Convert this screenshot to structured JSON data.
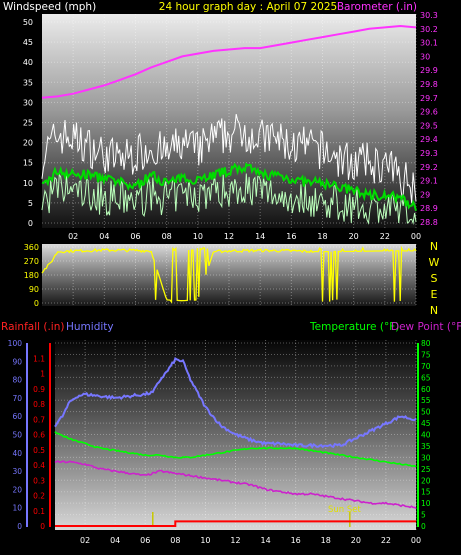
{
  "header": {
    "left_label": "Windspeed (mph)",
    "title": "24 hour graph day : April 07 2025",
    "right_label": "Barometer (.in)"
  },
  "colors": {
    "wind_label": "#ffffff",
    "title": "#ffff00",
    "barometer": "#ff33ff",
    "rain": "#ff0000",
    "humidity": "#7777ff",
    "temperature": "#00ff00",
    "dewpoint": "#cc22cc",
    "gust": "#ffffff",
    "wind_avg": "#00dd00",
    "wind_light": "#bbffbb",
    "direction": "#ffff00",
    "sunset": "#c8c800"
  },
  "chart_data": [
    {
      "id": "wind-baro",
      "type": "line",
      "xlabel": "",
      "x_ticks": [
        "02",
        "04",
        "06",
        "08",
        "10",
        "12",
        "14",
        "16",
        "18",
        "20",
        "22",
        "00"
      ],
      "x_range_hours": [
        0,
        24
      ],
      "left_axis": {
        "label": "Windspeed (mph)",
        "ylim": [
          0,
          50
        ],
        "ticks": [
          "0",
          "5",
          "10",
          "15",
          "20",
          "25",
          "30",
          "35",
          "40",
          "45",
          "50"
        ]
      },
      "right_axis": {
        "label": "Barometer (.in)",
        "ylim": [
          28.8,
          30.3
        ],
        "ticks": [
          "28.8",
          "28.9",
          "29",
          "29.1",
          "29.2",
          "29.3",
          "29.4",
          "29.5",
          "29.6",
          "29.7",
          "29.8",
          "29.9",
          "30",
          "30.1",
          "30.2",
          "30.3"
        ]
      },
      "series": [
        {
          "name": "Barometer (.in)",
          "axis": "right",
          "x": [
            0,
            1,
            2,
            3,
            4,
            5,
            6,
            7,
            8,
            9,
            10,
            11,
            12,
            13,
            14,
            15,
            16,
            17,
            18,
            19,
            20,
            21,
            22,
            23,
            24
          ],
          "y": [
            29.7,
            29.71,
            29.73,
            29.76,
            29.79,
            29.83,
            29.87,
            29.92,
            29.96,
            30.0,
            30.02,
            30.04,
            30.05,
            30.06,
            30.06,
            30.08,
            30.1,
            30.12,
            30.14,
            30.16,
            30.18,
            30.2,
            30.21,
            30.22,
            30.21
          ]
        },
        {
          "name": "Gust (mph)",
          "axis": "left",
          "x": [
            0,
            1,
            2,
            3,
            4,
            5,
            6,
            7,
            8,
            9,
            10,
            11,
            12,
            13,
            14,
            15,
            16,
            17,
            18,
            19,
            20,
            21,
            22,
            23,
            24
          ],
          "y": [
            14,
            20,
            19,
            17,
            15,
            14,
            15,
            17,
            15,
            18,
            16,
            19,
            20,
            21,
            19,
            19,
            17,
            17,
            16,
            14,
            13,
            13,
            12,
            10,
            7
          ]
        },
        {
          "name": "Average (mph)",
          "axis": "left",
          "x": [
            0,
            1,
            2,
            3,
            4,
            5,
            6,
            7,
            8,
            9,
            10,
            11,
            12,
            13,
            14,
            15,
            16,
            17,
            18,
            19,
            20,
            21,
            22,
            23,
            24
          ],
          "y": [
            9,
            13,
            12,
            12,
            11,
            10,
            9,
            12,
            10,
            11,
            11,
            12,
            13,
            14,
            12,
            12,
            11,
            10,
            10,
            9,
            8,
            7,
            7,
            6,
            4
          ]
        },
        {
          "name": "Lull (mph)",
          "axis": "left",
          "x": [
            0,
            1,
            2,
            3,
            4,
            5,
            6,
            7,
            8,
            9,
            10,
            11,
            12,
            13,
            14,
            15,
            16,
            17,
            18,
            19,
            20,
            21,
            22,
            23,
            24
          ],
          "y": [
            6,
            9,
            9,
            8,
            7,
            7,
            6,
            8,
            7,
            8,
            8,
            9,
            9,
            10,
            9,
            8,
            7,
            7,
            6,
            6,
            5,
            5,
            4,
            4,
            2
          ]
        }
      ]
    },
    {
      "id": "direction",
      "type": "line",
      "x_ticks": [
        "02",
        "04",
        "06",
        "08",
        "10",
        "12",
        "14",
        "16",
        "18",
        "20",
        "22",
        "00"
      ],
      "left_axis": {
        "ylim": [
          0,
          360
        ],
        "ticks": [
          "0",
          "90",
          "180",
          "270",
          "360"
        ]
      },
      "right_labels": [
        "N",
        "W",
        "S",
        "E",
        "N"
      ],
      "series": [
        {
          "name": "Wind direction",
          "x": [
            0,
            0.5,
            1,
            2,
            4,
            6,
            7,
            8,
            9,
            10,
            11,
            12,
            14,
            16,
            18,
            20,
            22,
            24
          ],
          "y": [
            200,
            250,
            330,
            335,
            340,
            338,
            335,
            20,
            15,
            20,
            330,
            335,
            338,
            335,
            330,
            332,
            335,
            335
          ]
        }
      ]
    },
    {
      "id": "rain-hum-temp",
      "type": "line",
      "x_ticks": [
        "02",
        "04",
        "06",
        "08",
        "10",
        "12",
        "14",
        "16",
        "18",
        "20",
        "22",
        "00"
      ],
      "axes": {
        "rain": {
          "label": "Rainfall (.in)",
          "ylim": [
            0,
            1.2
          ],
          "ticks": [
            "0",
            "0.1",
            "0.2",
            "0.3",
            "0.4",
            "0.5",
            "0.6",
            "0.7",
            "0.8",
            "0.9",
            "1",
            "1.1"
          ]
        },
        "humidity": {
          "label": "Humidity",
          "ylim": [
            0,
            100
          ],
          "ticks": [
            "0",
            "10",
            "20",
            "30",
            "40",
            "50",
            "60",
            "70",
            "80",
            "90",
            "100"
          ]
        },
        "temperature": {
          "label": "Temperature (°F)",
          "label2": "Dew Point (°F)",
          "ylim": [
            0,
            80
          ],
          "ticks": [
            "0",
            "5",
            "10",
            "15",
            "20",
            "25",
            "30",
            "35",
            "40",
            "45",
            "50",
            "55",
            "60",
            "65",
            "70",
            "75",
            "80"
          ]
        }
      },
      "sunset_label": "Sun Set",
      "sun_times_hours": [
        6.5,
        19.6
      ],
      "series": [
        {
          "name": "Rainfall (.in)",
          "axis": "rain",
          "x": [
            0,
            8,
            8,
            24
          ],
          "y": [
            0,
            0,
            0.03,
            0.03
          ]
        },
        {
          "name": "Humidity",
          "axis": "humidity",
          "x": [
            0,
            0.5,
            1,
            1.5,
            2,
            3,
            4,
            5,
            6,
            6.5,
            7,
            7.5,
            8,
            8.5,
            9,
            10,
            11,
            12,
            13,
            14,
            15,
            16,
            17,
            18,
            19,
            20,
            21,
            22,
            23,
            24
          ],
          "y": [
            55,
            60,
            68,
            71,
            72,
            71,
            70,
            71,
            72,
            73,
            80,
            85,
            91,
            90,
            80,
            65,
            55,
            50,
            47,
            45,
            45,
            44,
            44,
            44,
            44,
            48,
            52,
            56,
            60,
            58
          ]
        },
        {
          "name": "Temperature (°F)",
          "axis": "temperature",
          "x": [
            0,
            1,
            2,
            3,
            4,
            5,
            6,
            7,
            8,
            9,
            10,
            11,
            12,
            13,
            14,
            15,
            16,
            17,
            18,
            19,
            20,
            21,
            22,
            23,
            24
          ],
          "y": [
            41,
            38,
            36,
            34,
            33,
            32,
            31,
            31,
            30,
            30,
            31,
            32,
            33,
            34,
            34,
            34,
            34,
            33,
            32,
            31,
            30,
            29,
            28,
            27,
            26
          ]
        },
        {
          "name": "Dew Point (°F)",
          "axis": "temperature",
          "x": [
            0,
            1,
            2,
            3,
            4,
            5,
            6,
            7,
            8,
            9,
            10,
            11,
            12,
            13,
            14,
            15,
            16,
            17,
            18,
            19,
            20,
            21,
            22,
            23,
            24
          ],
          "y": [
            28,
            28,
            27,
            25,
            24,
            23,
            22,
            24,
            23,
            22,
            21,
            20,
            19,
            18,
            16,
            15,
            14,
            14,
            13,
            12,
            11,
            10,
            10,
            9,
            8
          ]
        }
      ]
    }
  ]
}
